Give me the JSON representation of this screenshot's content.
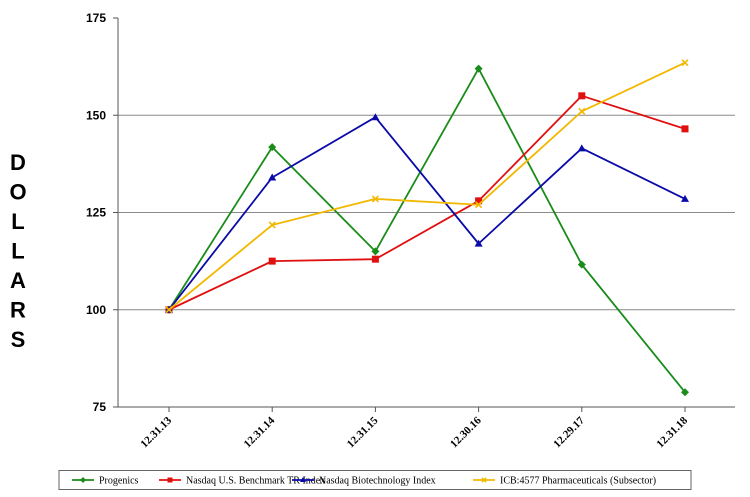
{
  "chart_data": {
    "type": "line",
    "title": "",
    "xlabel": "",
    "ylabel": "DOLLARS",
    "categories": [
      "12.31.13",
      "12.31.14",
      "12.31.15",
      "12.30.16",
      "12.29.17",
      "12.31.18"
    ],
    "ylim": [
      75,
      175
    ],
    "yticks": [
      "75",
      "100",
      "125",
      "150",
      "175"
    ],
    "grid": true,
    "legend_position": "bottom",
    "series": [
      {
        "name": "Progenics",
        "color": "#1a8c1a",
        "marker": "diamond",
        "values": [
          100,
          141.8,
          115,
          162,
          111.6,
          78.8
        ]
      },
      {
        "name": "Nasdaq U.S. Benchmark TR Index",
        "color": "#e01010",
        "marker": "square",
        "values": [
          100,
          112.5,
          113,
          128,
          155,
          146.5
        ]
      },
      {
        "name": "Nasdaq Biotechnology Index",
        "color": "#0a0aa8",
        "marker": "triangle",
        "values": [
          100,
          134,
          149.5,
          117,
          141.5,
          128.5
        ]
      },
      {
        "name": "ICB:4577 Pharmaceuticals (Subsector)",
        "color": "#f2b800",
        "marker": "x",
        "values": [
          100,
          121.8,
          128.5,
          127,
          151,
          163.5
        ]
      }
    ]
  }
}
